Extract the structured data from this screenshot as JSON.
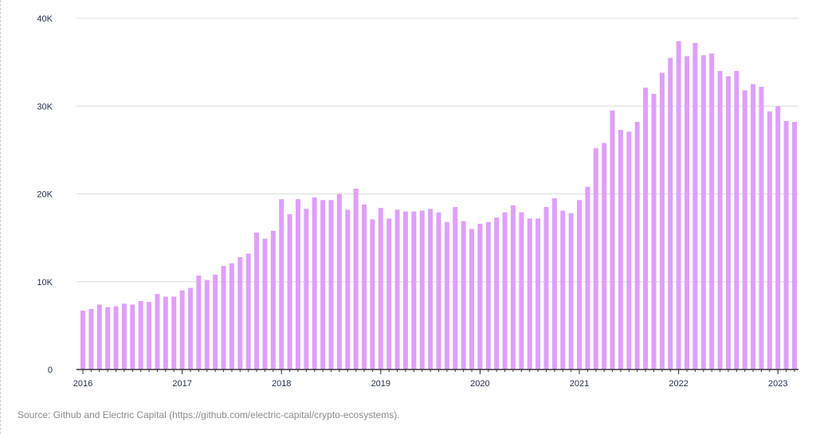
{
  "colors": {
    "bar": "#df9ffb",
    "grid": "#dcdcdc",
    "axis": "#333333",
    "tick_text": "#1f2d4a"
  },
  "chart_data": {
    "type": "bar",
    "title": "",
    "xlabel": "",
    "ylabel": "",
    "ylim": [
      0,
      40000
    ],
    "grid": true,
    "y_ticks": [
      {
        "value": 0,
        "label": "0"
      },
      {
        "value": 10000,
        "label": "10K"
      },
      {
        "value": 20000,
        "label": "20K"
      },
      {
        "value": 30000,
        "label": "30K"
      },
      {
        "value": 40000,
        "label": "40K"
      }
    ],
    "x_ticks": [
      "2016",
      "2017",
      "2018",
      "2019",
      "2020",
      "2021",
      "2022",
      "2023"
    ],
    "frequency": "monthly",
    "start": "2016-01",
    "values": [
      6700,
      6900,
      7400,
      7100,
      7200,
      7500,
      7400,
      7800,
      7700,
      8600,
      8300,
      8300,
      9000,
      9300,
      10700,
      10200,
      10800,
      11800,
      12100,
      12800,
      13200,
      15600,
      14900,
      15800,
      19400,
      17700,
      19400,
      18300,
      19600,
      19300,
      19300,
      20000,
      18200,
      20600,
      18800,
      17100,
      18400,
      17200,
      18200,
      18000,
      18000,
      18100,
      18300,
      17900,
      16800,
      18500,
      16900,
      16000,
      16600,
      16800,
      17300,
      17900,
      18700,
      17900,
      17200,
      17200,
      18500,
      19500,
      18100,
      17800,
      19300,
      20800,
      25200,
      25800,
      29500,
      27300,
      27100,
      28200,
      32100,
      31400,
      33800,
      35500,
      37400,
      35700,
      37200,
      35800,
      36000,
      34000,
      33400,
      34000,
      31800,
      32500,
      32200,
      29400,
      30000,
      28300,
      28200
    ]
  },
  "source": "Source: Github and Electric Capital (https://github.com/electric-capital/crypto-ecosystems)."
}
